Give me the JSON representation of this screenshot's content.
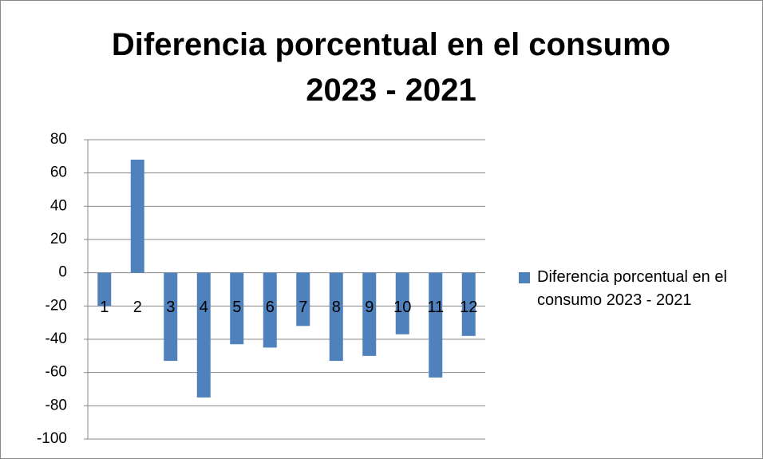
{
  "chart_data": {
    "type": "bar",
    "title": "Diferencia porcentual en el consumo\n2023 - 2021",
    "categories": [
      "1",
      "2",
      "3",
      "4",
      "5",
      "6",
      "7",
      "8",
      "9",
      "10",
      "11",
      "12"
    ],
    "series": [
      {
        "name": "Diferencia porcentual en el consumo 2023 - 2021",
        "color": "#4f81bd",
        "values": [
          -20,
          68,
          -53,
          -75,
          -43,
          -45,
          -32,
          -53,
          -50,
          -37,
          -63,
          -38
        ]
      }
    ],
    "ylim": [
      -100,
      80
    ],
    "yticks": [
      -100,
      -80,
      -60,
      -40,
      -20,
      0,
      20,
      40,
      60,
      80
    ],
    "grid": true,
    "legend": "right"
  }
}
